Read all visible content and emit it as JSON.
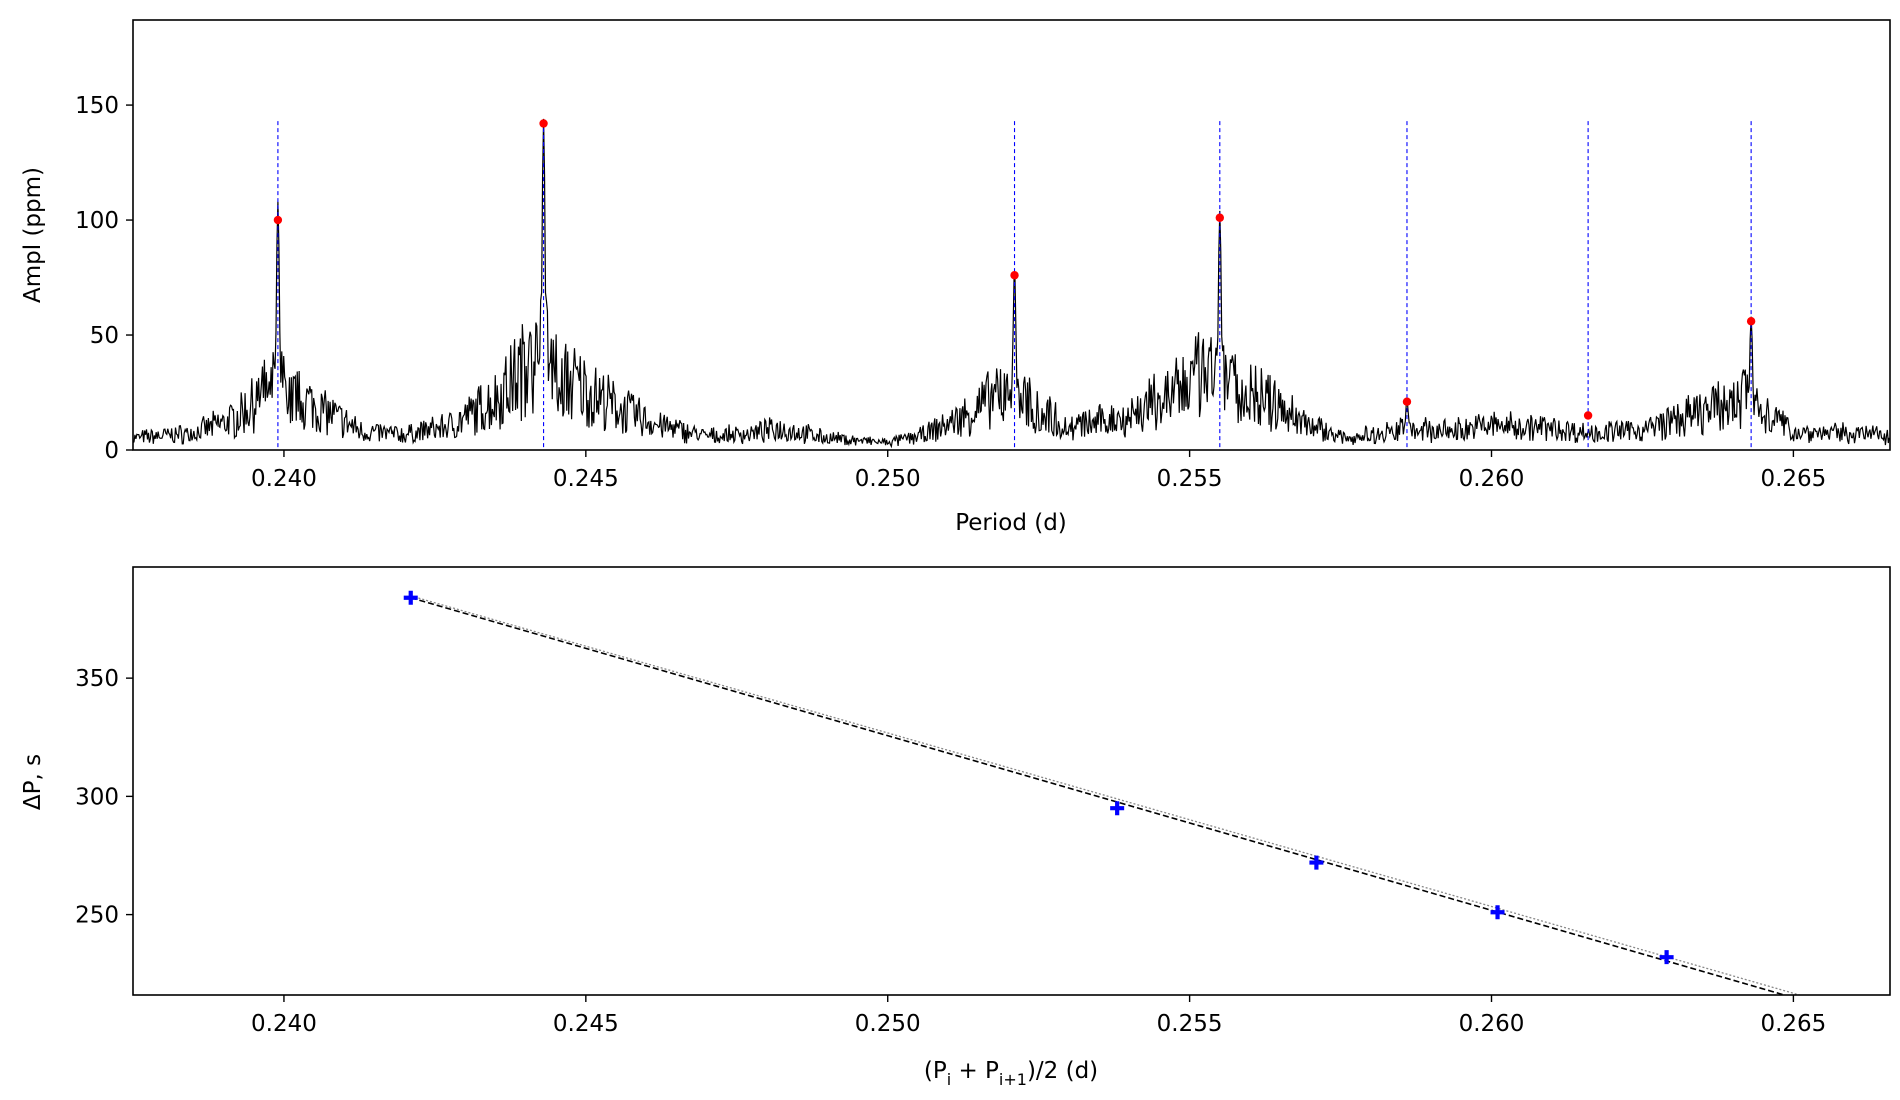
{
  "chart_data": [
    {
      "type": "line",
      "xlabel": "Period (d)",
      "ylabel": "Ampl (ppm)",
      "xlim": [
        0.2375,
        0.2666
      ],
      "ylim": [
        0,
        187
      ],
      "xticks": [
        "0.240",
        "0.245",
        "0.250",
        "0.255",
        "0.260",
        "0.265"
      ],
      "yticks": [
        "0",
        "50",
        "100",
        "150"
      ],
      "series": [
        {
          "kind": "periodogram",
          "color": "#000000",
          "baseline": [
            {
              "x": 0.2375,
              "y": 6
            },
            {
              "x": 0.2385,
              "y": 9
            },
            {
              "x": 0.2392,
              "y": 18
            },
            {
              "x": 0.2397,
              "y": 35
            },
            {
              "x": 0.2403,
              "y": 30
            },
            {
              "x": 0.2408,
              "y": 20
            },
            {
              "x": 0.2413,
              "y": 10
            },
            {
              "x": 0.242,
              "y": 8
            },
            {
              "x": 0.2428,
              "y": 14
            },
            {
              "x": 0.2435,
              "y": 30
            },
            {
              "x": 0.244,
              "y": 50
            },
            {
              "x": 0.2448,
              "y": 40
            },
            {
              "x": 0.2455,
              "y": 25
            },
            {
              "x": 0.2462,
              "y": 14
            },
            {
              "x": 0.247,
              "y": 7
            },
            {
              "x": 0.2478,
              "y": 9
            },
            {
              "x": 0.2482,
              "y": 12
            },
            {
              "x": 0.249,
              "y": 6
            },
            {
              "x": 0.25,
              "y": 3
            },
            {
              "x": 0.2506,
              "y": 8
            },
            {
              "x": 0.2512,
              "y": 18
            },
            {
              "x": 0.2518,
              "y": 32
            },
            {
              "x": 0.2524,
              "y": 26
            },
            {
              "x": 0.253,
              "y": 12
            },
            {
              "x": 0.254,
              "y": 20
            },
            {
              "x": 0.2548,
              "y": 35
            },
            {
              "x": 0.2552,
              "y": 45
            },
            {
              "x": 0.256,
              "y": 35
            },
            {
              "x": 0.2568,
              "y": 18
            },
            {
              "x": 0.2575,
              "y": 6
            },
            {
              "x": 0.258,
              "y": 8
            },
            {
              "x": 0.2586,
              "y": 12
            },
            {
              "x": 0.2592,
              "y": 10
            },
            {
              "x": 0.26,
              "y": 14
            },
            {
              "x": 0.261,
              "y": 12
            },
            {
              "x": 0.2616,
              "y": 9
            },
            {
              "x": 0.2625,
              "y": 11
            },
            {
              "x": 0.2635,
              "y": 22
            },
            {
              "x": 0.2642,
              "y": 30
            },
            {
              "x": 0.265,
              "y": 10
            },
            {
              "x": 0.2666,
              "y": 8
            }
          ],
          "peaks": [
            {
              "x": 0.2399,
              "y": 108
            },
            {
              "x": 0.2443,
              "y": 144
            },
            {
              "x": 0.2521,
              "y": 78
            },
            {
              "x": 0.2555,
              "y": 104
            },
            {
              "x": 0.2586,
              "y": 22
            },
            {
              "x": 0.2643,
              "y": 58
            }
          ]
        },
        {
          "kind": "scatter",
          "name": "",
          "color": "#ff0000",
          "points": [
            {
              "x": 0.2399,
              "y": 100
            },
            {
              "x": 0.2443,
              "y": 142
            },
            {
              "x": 0.2521,
              "y": 76
            },
            {
              "x": 0.2555,
              "y": 101
            },
            {
              "x": 0.2586,
              "y": 21
            },
            {
              "x": 0.2616,
              "y": 15
            },
            {
              "x": 0.2643,
              "y": 56
            }
          ]
        }
      ],
      "vlines": {
        "color": "#0000ff",
        "style": "dashed",
        "x": [
          0.2399,
          0.2443,
          0.2521,
          0.2555,
          0.2586,
          0.2616,
          0.2643
        ],
        "ymax": 143
      }
    },
    {
      "type": "scatter",
      "xlabel_parts": [
        "(P",
        "i",
        " + P",
        "i+1",
        ")/2 (d)"
      ],
      "ylabel": "ΔP, s",
      "xlim": [
        0.2375,
        0.2666
      ],
      "ylim": [
        216,
        397
      ],
      "xticks": [
        "0.240",
        "0.245",
        "0.250",
        "0.255",
        "0.260",
        "0.265"
      ],
      "yticks": [
        "250",
        "300",
        "350"
      ],
      "series": [
        {
          "name": "",
          "color": "#0000ff",
          "marker": "plus",
          "points": [
            {
              "x": 0.2421,
              "y": 384
            },
            {
              "x": 0.2538,
              "y": 295
            },
            {
              "x": 0.2571,
              "y": 272
            },
            {
              "x": 0.2601,
              "y": 251
            },
            {
              "x": 0.2629,
              "y": 232
            }
          ]
        }
      ],
      "fit_lines": [
        {
          "style": "dashed",
          "color": "#000000",
          "from": {
            "x": 0.2421,
            "y": 384
          },
          "to": {
            "x": 0.26485,
            "y": 216
          }
        },
        {
          "style": "dotted",
          "color": "#888888",
          "from": {
            "x": 0.2421,
            "y": 384.8
          },
          "to": {
            "x": 0.2651,
            "y": 216
          }
        }
      ]
    }
  ]
}
